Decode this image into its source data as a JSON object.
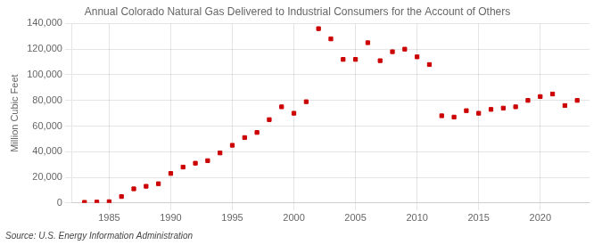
{
  "chart_data": {
    "type": "scatter",
    "title": "Annual Colorado Natural Gas Delivered to Industrial Consumers for the Account of Others",
    "ylabel": "Million Cubic Feet",
    "source": "Source: U.S. Energy Information Administration",
    "x": [
      1983,
      1984,
      1985,
      1986,
      1987,
      1988,
      1989,
      1990,
      1991,
      1992,
      1993,
      1994,
      1995,
      1996,
      1997,
      1998,
      1999,
      2000,
      2001,
      2002,
      2003,
      2004,
      2005,
      2006,
      2007,
      2008,
      2009,
      2010,
      2011,
      2012,
      2013,
      2014,
      2015,
      2016,
      2017,
      2018,
      2019,
      2020,
      2021,
      2022,
      2023
    ],
    "values": [
      500,
      700,
      1000,
      5000,
      11000,
      13000,
      15000,
      23000,
      28000,
      31000,
      33000,
      39000,
      45000,
      51000,
      55000,
      65000,
      75000,
      70000,
      79000,
      136000,
      128000,
      112000,
      112000,
      125000,
      111000,
      118000,
      120000,
      114000,
      108000,
      68000,
      67000,
      72000,
      70000,
      73000,
      74000,
      75000,
      80000,
      83000,
      85000,
      76000,
      80000
    ],
    "color": "#cc0000",
    "marker": "square",
    "xlim": [
      1982,
      2024
    ],
    "xticks": [
      1985,
      1990,
      1995,
      2000,
      2005,
      2010,
      2015,
      2020
    ],
    "ylim": [
      0,
      140000
    ],
    "yticks": [
      0,
      {
        "value": 20000,
        "label": "20,000"
      },
      {
        "value": 40000,
        "label": "40,000"
      },
      {
        "value": 60000,
        "label": "60,000"
      },
      {
        "value": 80000,
        "label": "80,000"
      },
      {
        "value": 100000,
        "label": "100,000"
      },
      {
        "value": 120000,
        "label": "120,000"
      },
      {
        "value": 140000,
        "label": "140,000"
      }
    ],
    "grid": true
  }
}
